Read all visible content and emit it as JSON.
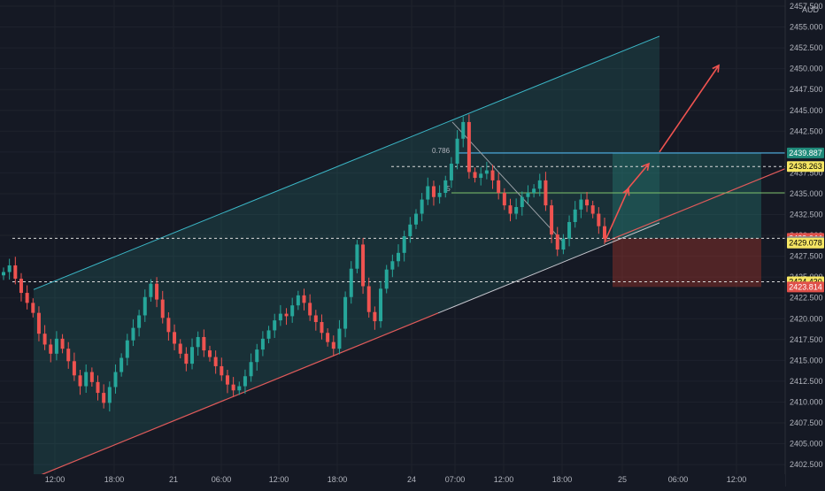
{
  "chart_data": {
    "type": "candlestick",
    "currency": "AUD",
    "y_axis": {
      "min": 2400,
      "max": 2457.5,
      "ticks": [
        "2457.500",
        "2455.000",
        "2452.500",
        "2450.000",
        "2447.500",
        "2445.000",
        "2442.500",
        "2440.000",
        "2437.500",
        "2435.000",
        "2432.500",
        "2430.000",
        "2427.500",
        "2425.000",
        "2422.500",
        "2420.000",
        "2417.500",
        "2415.000",
        "2412.500",
        "2410.000",
        "2407.500",
        "2405.000",
        "2402.500"
      ]
    },
    "x_axis": {
      "labels": [
        "12:00",
        "18:00",
        "21",
        "06:00",
        "12:00",
        "18:00",
        "24",
        "07:00",
        "12:00",
        "18:00",
        "25",
        "06:00",
        "12:00"
      ]
    },
    "price_badges": [
      {
        "label": "2439.887",
        "value": 2439.887,
        "kind": "blue-line"
      },
      {
        "label": "2438.263",
        "value": 2438.263,
        "kind": "dashed"
      },
      {
        "label": "2429.644",
        "value": 2429.644,
        "kind": "stop"
      },
      {
        "label": "2429.247",
        "value": 2429.247,
        "kind": "last"
      },
      {
        "label": "2429.078",
        "value": 2429.078,
        "kind": "dashed"
      },
      {
        "label": "2424.430",
        "value": 2424.43,
        "kind": "dashed"
      },
      {
        "label": "2423.814",
        "value": 2423.814,
        "kind": "stop"
      }
    ],
    "fib_labels": [
      "0.786",
      ".5"
    ],
    "series": [
      {
        "name": "price",
        "values": [
          2425.6,
          2426.4,
          2424.8,
          2423.1,
          2421.9,
          2420.7,
          2418.2,
          2416.9,
          2415.8,
          2417.6,
          2416.4,
          2414.9,
          2413.2,
          2411.9,
          2413.6,
          2412.4,
          2411.1,
          2409.9,
          2411.8,
          2413.6,
          2415.3,
          2417.4,
          2418.9,
          2420.4,
          2422.6,
          2424.2,
          2422.3,
          2420.1,
          2418.4,
          2417.0,
          2415.8,
          2414.6,
          2416.6,
          2417.8,
          2416.2,
          2415.4,
          2414.3,
          2413.2,
          2412.1,
          2411.4,
          2411.9,
          2413.1,
          2414.8,
          2416.3,
          2417.6,
          2418.6,
          2419.8,
          2420.6,
          2420.3,
          2421.6,
          2422.8,
          2421.9,
          2420.4,
          2419.6,
          2418.3,
          2417.2,
          2416.4,
          2418.8,
          2422.6,
          2426.0,
          2428.9,
          2423.9,
          2420.8,
          2419.7,
          2423.6,
          2425.9,
          2426.9,
          2427.9,
          2429.9,
          2431.3,
          2432.6,
          2434.3,
          2435.9,
          2434.6,
          2435.1,
          2436.6,
          2438.6,
          2441.6,
          2443.6,
          2437.6,
          2436.9,
          2437.4,
          2437.8,
          2436.6,
          2435.1,
          2433.6,
          2432.6,
          2433.4,
          2434.6,
          2435.1,
          2435.6,
          2436.6,
          2433.6,
          2430.1,
          2428.3,
          2429.6,
          2431.6,
          2433.1,
          2434.3,
          2433.6,
          2432.6,
          2431.1,
          2429.6
        ]
      }
    ],
    "drawings": {
      "channel_upper": [
        [
          38,
          2423.5
        ],
        [
          745,
          2453.9
        ]
      ],
      "channel_lower": [
        [
          38,
          2400.9
        ],
        [
          745,
          2431.5
        ]
      ],
      "target_levels": [
        2439.887,
        2435.1
      ],
      "projection_arrows": [
        [
          [
            683,
            2429.2
          ],
          [
            710,
            2435.6
          ],
          [
            733,
            2438.6
          ]
        ],
        [
          [
            745,
            2440.0
          ],
          [
            812,
            2450.4
          ]
        ]
      ],
      "risk_zone": {
        "top": 2429.644,
        "bottom": 2423.814
      },
      "reward_zone": {
        "top": 2439.887,
        "bottom": 2429.644
      }
    }
  }
}
